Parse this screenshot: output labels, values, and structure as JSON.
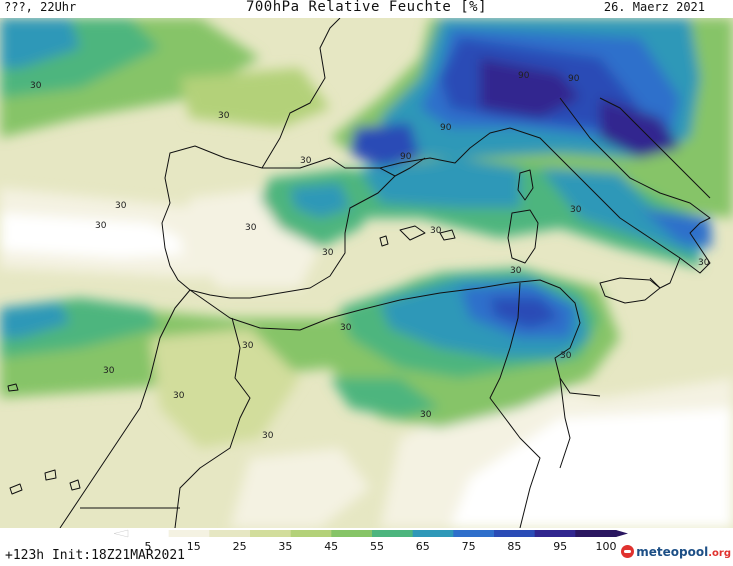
{
  "header": {
    "left": "???, 22Uhr",
    "title": "700hPa Relative Feuchte [%]",
    "date": "26. Maerz 2021"
  },
  "footer": {
    "init": "+123h  Init:18Z21MAR2021",
    "logo_name": "meteopool",
    "logo_tld": ".org"
  },
  "colorbar": {
    "labels": [
      "5",
      "15",
      "25",
      "35",
      "45",
      "55",
      "65",
      "75",
      "85",
      "95",
      "100"
    ],
    "colors": [
      "#ffffff",
      "#f4f2e2",
      "#e6e7c3",
      "#d2dd9c",
      "#b3d179",
      "#86c467",
      "#4db57e",
      "#2f98b8",
      "#2f6fcb",
      "#2b4cb6",
      "#31268f",
      "#2a1660"
    ]
  },
  "map": {
    "contour_labels": [
      "30",
      "30",
      "30",
      "30",
      "30",
      "30",
      "30",
      "30",
      "30",
      "30",
      "30",
      "30",
      "30",
      "30",
      "30",
      "30",
      "30",
      "30",
      "90",
      "90",
      "90",
      "90"
    ],
    "legend_icons": [
      "coastline-icon",
      "border-icon"
    ]
  }
}
